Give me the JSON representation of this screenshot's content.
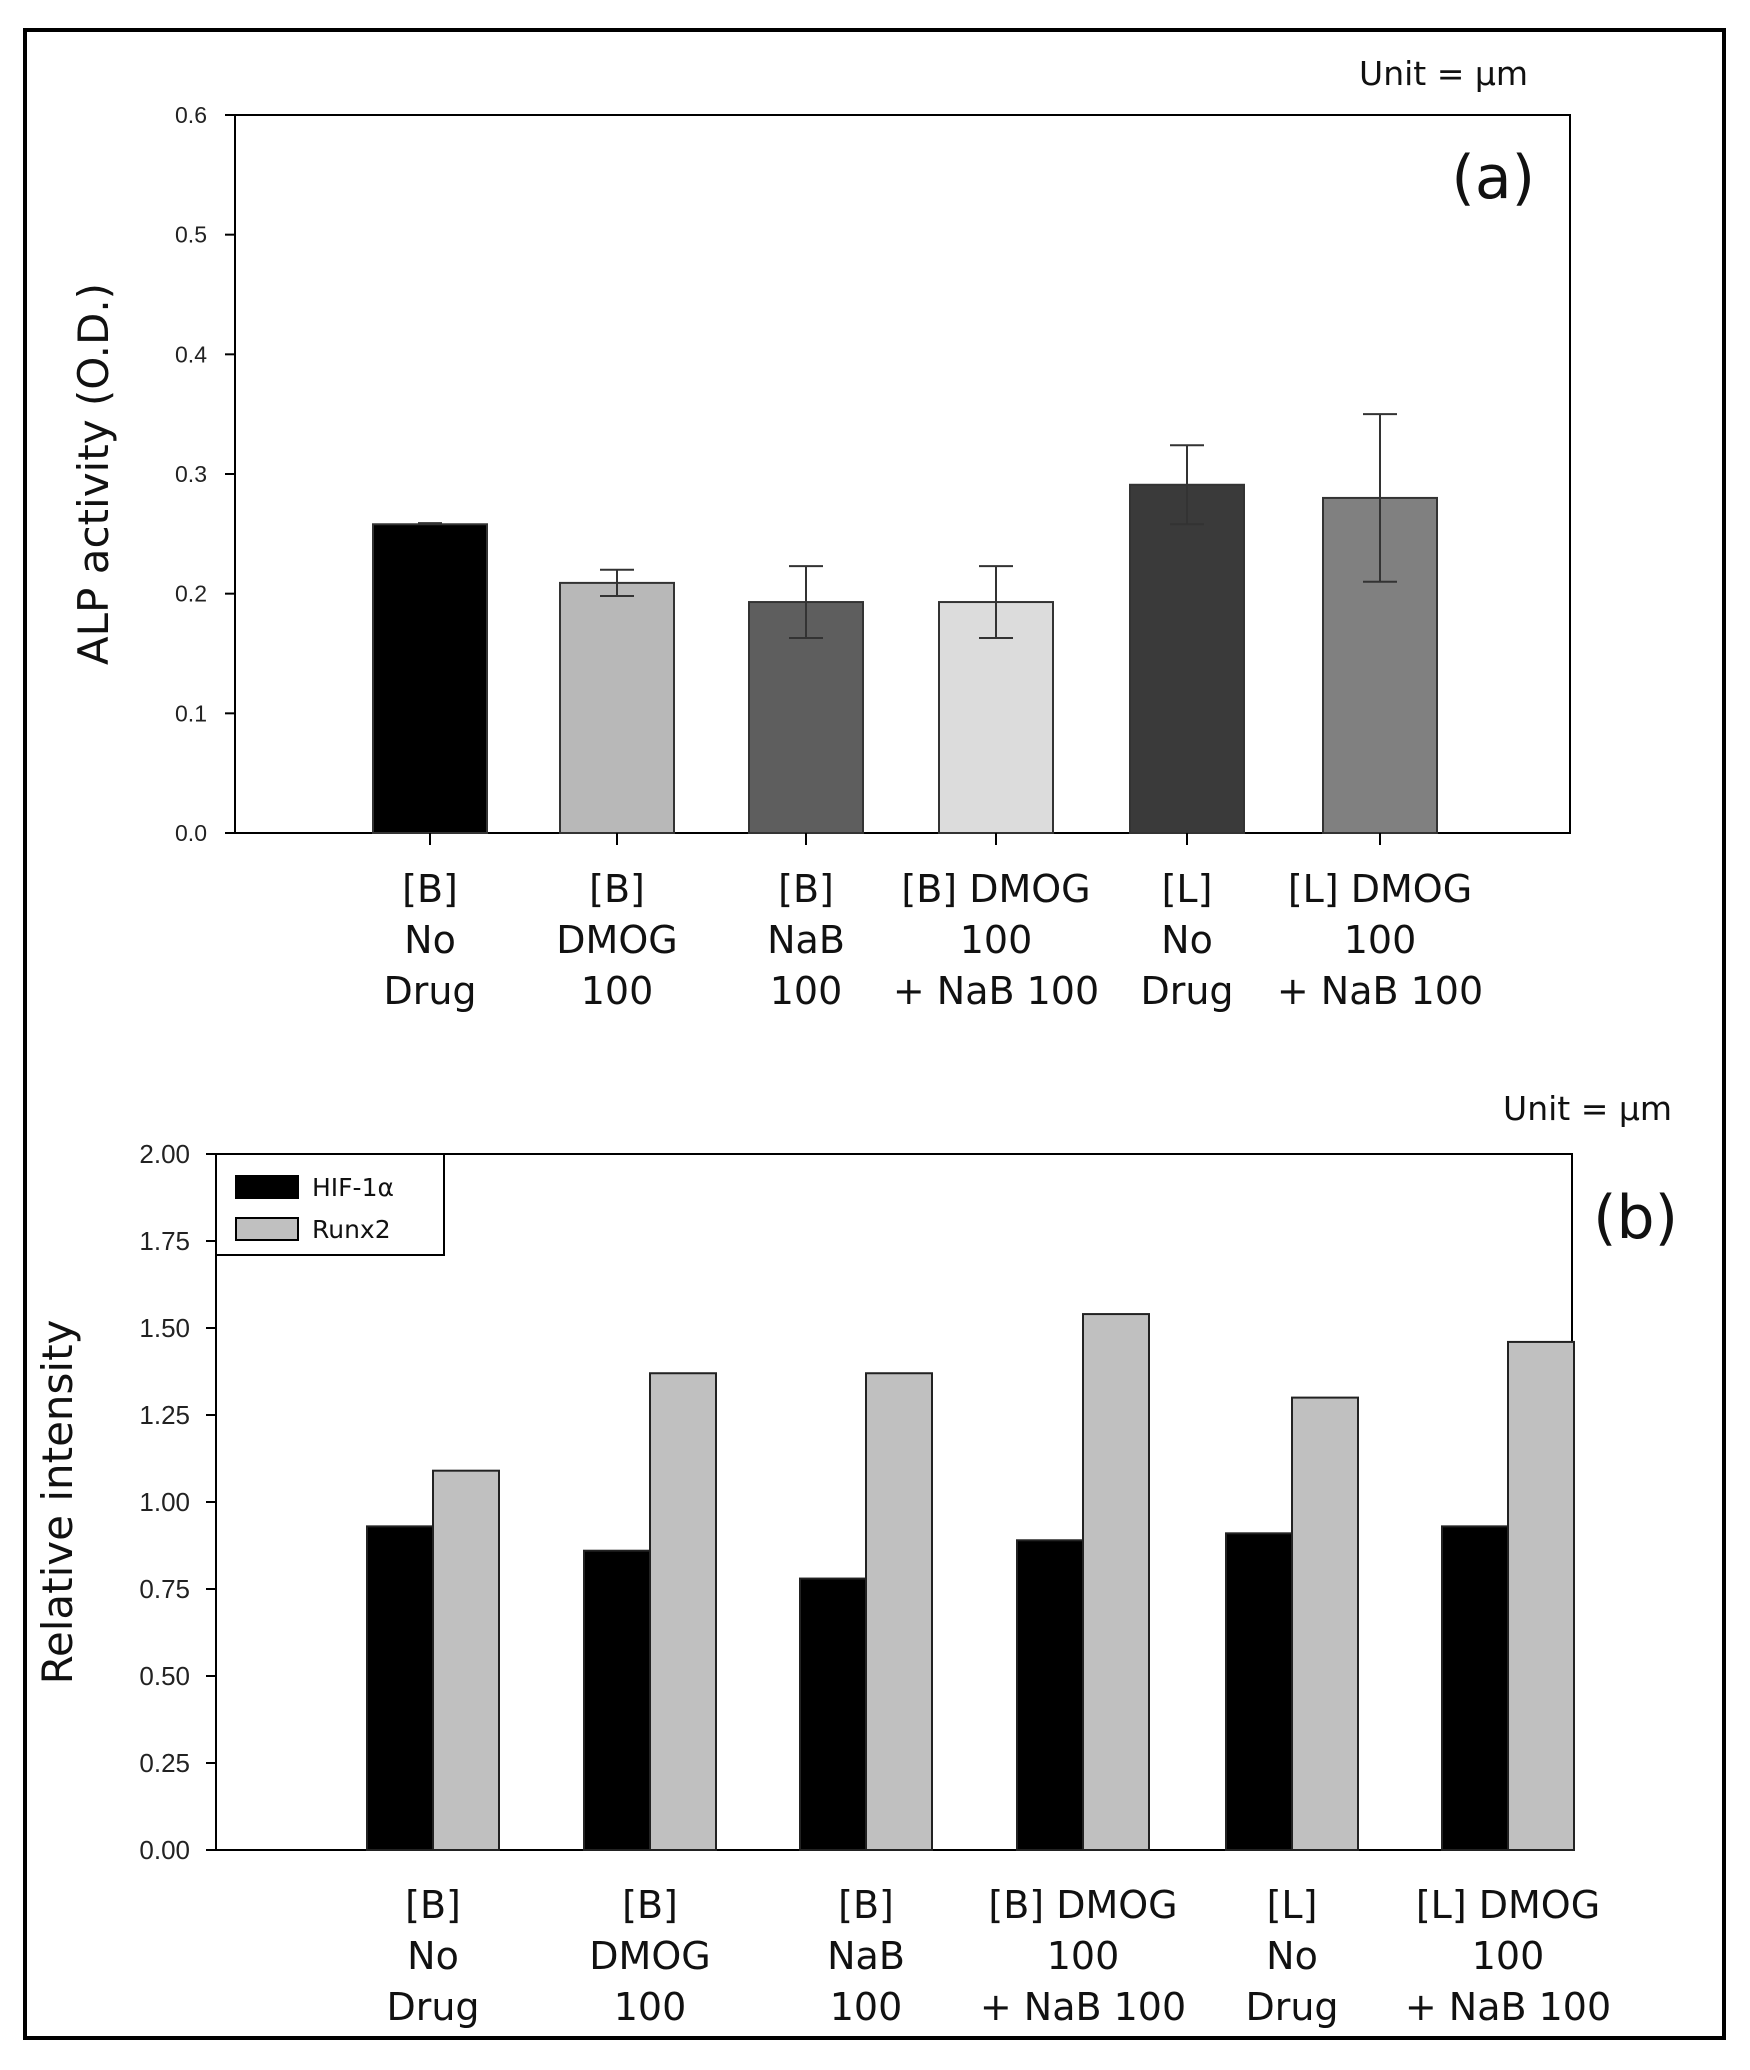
{
  "chart_data": [
    {
      "type": "bar",
      "panel_label": "(a)",
      "unit_note": "Unit = μm",
      "title": "",
      "xlabel": "",
      "ylabel": "ALP activity (O.D.)",
      "ylim": [
        0,
        0.6
      ],
      "yticks": [
        "0.0",
        "0.1",
        "0.2",
        "0.3",
        "0.4",
        "0.5",
        "0.6"
      ],
      "categories": [
        [
          "[B]",
          "No",
          "Drug"
        ],
        [
          "[B]",
          "DMOG",
          "100"
        ],
        [
          "[B]",
          "NaB",
          "100"
        ],
        [
          "[B]  DMOG",
          "100",
          "+ NaB 100"
        ],
        [
          "[L]",
          "No",
          "Drug"
        ],
        [
          "[L]  DMOG",
          "100",
          "+ NaB 100"
        ]
      ],
      "values": [
        0.258,
        0.209,
        0.193,
        0.193,
        0.291,
        0.28
      ],
      "errors": [
        0.001,
        0.011,
        0.03,
        0.03,
        0.033,
        0.07
      ],
      "colors": [
        "#000000",
        "#b8b8b8",
        "#5e5e5e",
        "#dcdcdc",
        "#3a3a3a",
        "#808080"
      ]
    },
    {
      "type": "bar",
      "panel_label": "(b)",
      "unit_note": "Unit = μm",
      "title": "",
      "xlabel": "",
      "ylabel": "Relative intensity",
      "ylim": [
        0,
        2.0
      ],
      "yticks": [
        "0.00",
        "0.25",
        "0.50",
        "0.75",
        "1.00",
        "1.25",
        "1.50",
        "1.75",
        "2.00"
      ],
      "legend_position": "top-left",
      "categories": [
        [
          "[B]",
          "No",
          "Drug"
        ],
        [
          "[B]",
          "DMOG",
          "100"
        ],
        [
          "[B]",
          "NaB",
          "100"
        ],
        [
          "[B]  DMOG",
          "100",
          "+ NaB 100"
        ],
        [
          "[L]",
          "No",
          "Drug"
        ],
        [
          "[L]  DMOG",
          "100",
          "+ NaB 100"
        ]
      ],
      "series": [
        {
          "name": "HIF-1α",
          "color": "#000000",
          "values": [
            0.93,
            0.86,
            0.78,
            0.89,
            0.91,
            0.93
          ]
        },
        {
          "name": "Runx2",
          "color": "#c0c0c0",
          "values": [
            1.09,
            1.37,
            1.37,
            1.54,
            1.3,
            1.46
          ]
        }
      ]
    }
  ]
}
